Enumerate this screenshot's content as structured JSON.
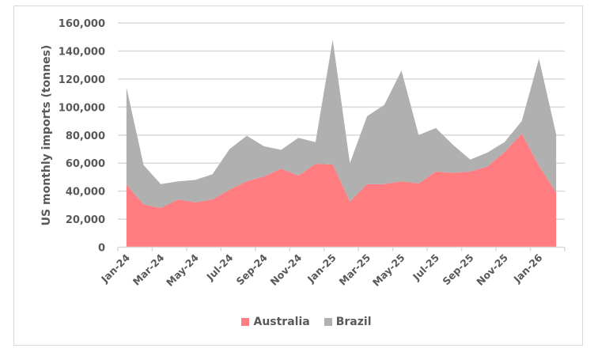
{
  "chart_data": {
    "type": "area",
    "stacked": true,
    "title": "",
    "xlabel": "",
    "ylabel": "US monthly imports (tonnes)",
    "ylim": [
      0,
      160000
    ],
    "yticks": [
      "0",
      "20,000",
      "40,000",
      "60,000",
      "80,000",
      "100,000",
      "120,000",
      "140,000",
      "160,000"
    ],
    "grid": true,
    "legend_position": "bottom",
    "x_tick_labels": [
      "Jan-24",
      "Mar-24",
      "May-24",
      "Jul-24",
      "Sep-24",
      "Nov-24",
      "Jan-25",
      "Mar-25",
      "May-25",
      "Jul-25",
      "Sep-25",
      "Nov-25",
      "Jan-26"
    ],
    "categories": [
      "Jan-24",
      "Feb-24",
      "Mar-24",
      "Apr-24",
      "May-24",
      "Jun-24",
      "Jul-24",
      "Aug-24",
      "Sep-24",
      "Oct-24",
      "Nov-24",
      "Dec-24",
      "Jan-25",
      "Feb-25",
      "Mar-25",
      "Apr-25",
      "May-25",
      "Jun-25",
      "Jul-25",
      "Aug-25",
      "Sep-25",
      "Oct-25",
      "Nov-25",
      "Dec-25",
      "Jan-26",
      "Feb-26"
    ],
    "series": [
      {
        "name": "Australia",
        "color": "#ff7c80",
        "values": [
          44500,
          30500,
          28000,
          34000,
          32000,
          34000,
          41000,
          47000,
          50500,
          56000,
          51000,
          59500,
          59000,
          32500,
          45000,
          45000,
          47000,
          45500,
          54000,
          53000,
          54000,
          57500,
          68000,
          81000,
          58000,
          39000
        ]
      },
      {
        "name": "Brazil",
        "color": "#b0b0b0",
        "values": [
          69500,
          28000,
          17000,
          13000,
          16000,
          18000,
          29000,
          32500,
          21500,
          13500,
          27000,
          15500,
          89000,
          27500,
          48500,
          56500,
          79000,
          34500,
          31000,
          20000,
          8500,
          10000,
          7000,
          9000,
          76500,
          41500
        ]
      }
    ]
  },
  "legend": {
    "items": [
      {
        "label": "Australia",
        "color": "#ff7c80"
      },
      {
        "label": "Brazil",
        "color": "#b0b0b0"
      }
    ]
  }
}
